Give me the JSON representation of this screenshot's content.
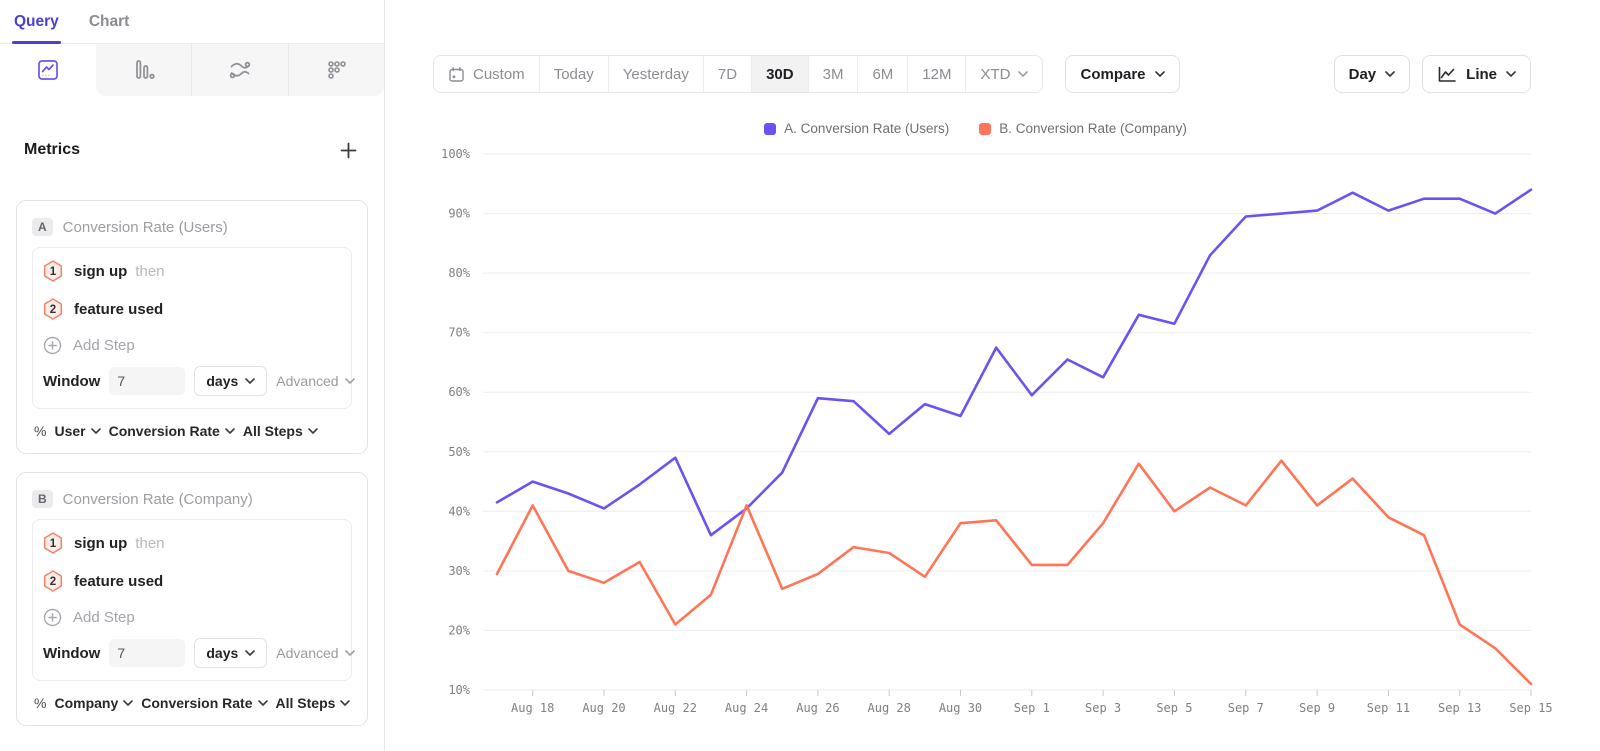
{
  "sidebar": {
    "tabs": [
      {
        "label": "Query"
      },
      {
        "label": "Chart"
      }
    ],
    "chart_type_tabs": [
      {
        "icon": "insights-line-chart-icon",
        "selected": true
      },
      {
        "icon": "bar-chart-icon",
        "selected": false
      },
      {
        "icon": "flows-icon",
        "selected": false
      },
      {
        "icon": "funnel-dots-icon",
        "selected": false
      }
    ],
    "metrics": {
      "title": "Metrics",
      "cards": [
        {
          "badge": "A",
          "title": "Conversion Rate (Users)",
          "steps": [
            {
              "num": "1",
              "event": "sign up",
              "suffix": "then"
            },
            {
              "num": "2",
              "event": "feature used",
              "suffix": ""
            }
          ],
          "add_step_label": "Add Step",
          "window_label": "Window",
          "window_value": "7",
          "window_unit": "days",
          "advanced_label": "Advanced",
          "measure_prefix": "%",
          "measure_entity": "User",
          "measure_metric": "Conversion Rate",
          "measure_steps": "All Steps"
        },
        {
          "badge": "B",
          "title": "Conversion Rate (Company)",
          "steps": [
            {
              "num": "1",
              "event": "sign up",
              "suffix": "then"
            },
            {
              "num": "2",
              "event": "feature used",
              "suffix": ""
            }
          ],
          "add_step_label": "Add Step",
          "window_label": "Window",
          "window_value": "7",
          "window_unit": "days",
          "advanced_label": "Advanced",
          "measure_prefix": "%",
          "measure_entity": "Company",
          "measure_metric": "Conversion Rate",
          "measure_steps": "All Steps"
        }
      ]
    }
  },
  "toolbar": {
    "date_ranges": [
      "Custom",
      "Today",
      "Yesterday",
      "7D",
      "30D",
      "3M",
      "6M",
      "12M",
      "XTD"
    ],
    "selected_range": "30D",
    "compare_label": "Compare",
    "granularity_label": "Day",
    "chart_style_label": "Line"
  },
  "chart_data": {
    "type": "line",
    "x": [
      "Aug 17",
      "Aug 18",
      "Aug 19",
      "Aug 20",
      "Aug 21",
      "Aug 22",
      "Aug 23",
      "Aug 24",
      "Aug 25",
      "Aug 26",
      "Aug 27",
      "Aug 28",
      "Aug 29",
      "Aug 30",
      "Aug 31",
      "Sep 1",
      "Sep 2",
      "Sep 3",
      "Sep 4",
      "Sep 5",
      "Sep 6",
      "Sep 7",
      "Sep 8",
      "Sep 9",
      "Sep 10",
      "Sep 11",
      "Sep 12",
      "Sep 13",
      "Sep 14",
      "Sep 15"
    ],
    "series": [
      {
        "name": "A. Conversion Rate (Users)",
        "color": "#6E51F2",
        "values": [
          41.5,
          45,
          43,
          40.5,
          44.5,
          49,
          36,
          40.5,
          46.5,
          59,
          58.5,
          53,
          58,
          56,
          67.5,
          59.5,
          65.5,
          62.5,
          73,
          71.5,
          83,
          89.5,
          90,
          90.5,
          93.5,
          90.5,
          92.5,
          92.5,
          90,
          94
        ]
      },
      {
        "name": "B. Conversion Rate (Company)",
        "color": "#FF7557",
        "values": [
          29.5,
          41,
          30,
          28,
          31.5,
          21,
          26,
          41,
          27,
          29.5,
          34,
          33,
          29,
          38,
          38.5,
          31,
          31,
          38,
          48,
          40,
          44,
          41,
          48.5,
          41,
          45.5,
          39,
          36,
          21,
          17,
          11
        ]
      }
    ],
    "ylim": [
      10,
      100
    ],
    "y_tick_step": 10,
    "y_tick_format": "percent",
    "x_tick_labels": [
      "Aug 18",
      "Aug 20",
      "Aug 22",
      "Aug 24",
      "Aug 26",
      "Aug 28",
      "Aug 30",
      "Sep 1",
      "Sep 3",
      "Sep 5",
      "Sep 7",
      "Sep 9",
      "Sep 11",
      "Sep 13",
      "Sep 15"
    ],
    "grid": "horizontal",
    "legend_position": "top-center"
  }
}
